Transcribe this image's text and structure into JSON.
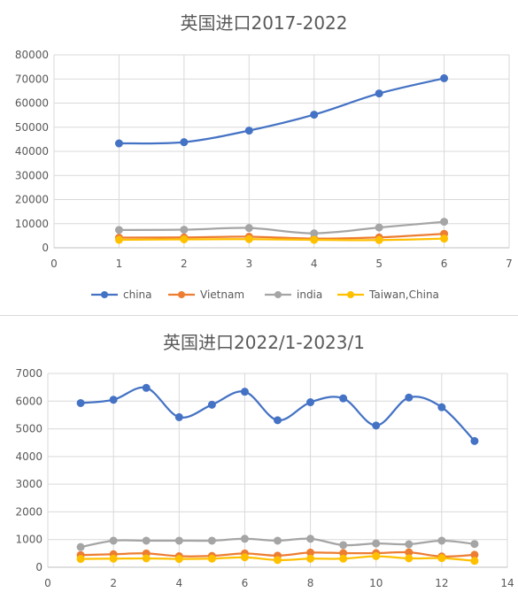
{
  "chart_data": [
    {
      "type": "line",
      "title": "英国进口2017-2022",
      "xlabel": "",
      "ylabel": "",
      "xlim": [
        0,
        7
      ],
      "ylim": [
        0,
        80000
      ],
      "x_ticks": [
        0,
        1,
        2,
        3,
        4,
        5,
        6,
        7
      ],
      "y_ticks": [
        0,
        10000,
        20000,
        30000,
        40000,
        50000,
        60000,
        70000,
        80000
      ],
      "grid": "vertical and horizontal",
      "legend": "bottom",
      "x": [
        1,
        2,
        3,
        4,
        5,
        6
      ],
      "series": [
        {
          "name": "china",
          "color": "#4472C4",
          "values": [
            43300,
            43800,
            48600,
            55200,
            64000,
            70300
          ]
        },
        {
          "name": "Vietnam",
          "color": "#ED7D31",
          "values": [
            4200,
            4300,
            4600,
            3800,
            4300,
            5800
          ]
        },
        {
          "name": "india",
          "color": "#A5A5A5",
          "values": [
            7400,
            7500,
            8200,
            6000,
            8400,
            10800
          ]
        },
        {
          "name": "Taiwan,China",
          "color": "#FFC000",
          "values": [
            3300,
            3500,
            3600,
            3300,
            3200,
            3800
          ]
        }
      ]
    },
    {
      "type": "line",
      "title": "英国进口2022/1-2023/1",
      "xlabel": "",
      "ylabel": "",
      "xlim": [
        0,
        14
      ],
      "ylim": [
        0,
        7000
      ],
      "x_ticks": [
        0,
        2,
        4,
        6,
        8,
        10,
        12,
        14
      ],
      "y_ticks": [
        0,
        1000,
        2000,
        3000,
        4000,
        5000,
        6000,
        7000
      ],
      "grid": "vertical and horizontal",
      "legend": "none",
      "x": [
        1,
        2,
        3,
        4,
        5,
        6,
        7,
        8,
        9,
        10,
        11,
        12,
        13
      ],
      "series": [
        {
          "color": "#4472C4",
          "values": [
            5930,
            6050,
            6480,
            5420,
            5870,
            6340,
            5310,
            5960,
            6100,
            5120,
            6130,
            5780,
            4560
          ]
        },
        {
          "color": "#A5A5A5",
          "values": [
            730,
            960,
            960,
            960,
            960,
            1030,
            960,
            1030,
            800,
            860,
            830,
            960,
            840
          ]
        },
        {
          "color": "#ED7D31",
          "values": [
            440,
            470,
            500,
            400,
            410,
            500,
            420,
            530,
            510,
            510,
            540,
            390,
            450
          ]
        },
        {
          "color": "#FFC000",
          "values": [
            300,
            310,
            320,
            300,
            310,
            360,
            260,
            310,
            310,
            400,
            320,
            330,
            230
          ]
        }
      ]
    }
  ]
}
